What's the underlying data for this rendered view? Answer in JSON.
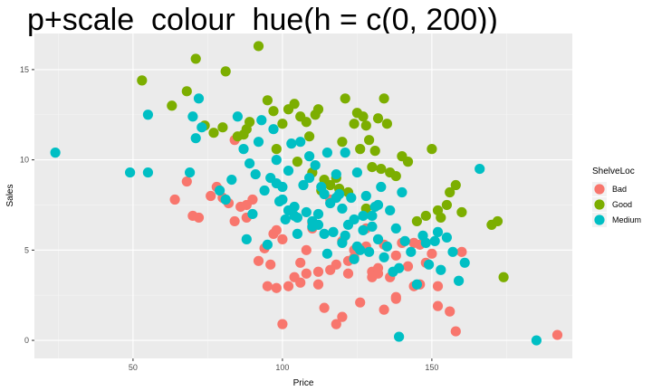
{
  "chart_data": {
    "type": "scatter",
    "title": "p+scale_colour_hue(h = c(0, 200))",
    "xlabel": "Price",
    "ylabel": "Sales",
    "xlim": [
      17,
      197
    ],
    "ylim": [
      -1,
      17
    ],
    "xticks": [
      "50",
      "100",
      "150"
    ],
    "yticks": [
      "0",
      "5",
      "10",
      "15"
    ],
    "grid": true,
    "legend": {
      "title": "ShelveLoc",
      "position": "right"
    },
    "series": [
      {
        "name": "Bad",
        "color": "#F8766D",
        "x": [
          70,
          72,
          78,
          80,
          82,
          84,
          86,
          90,
          95,
          97,
          100,
          102,
          104,
          106,
          108,
          110,
          112,
          114,
          116,
          118,
          120,
          122,
          124,
          126,
          128,
          130,
          132,
          134,
          136,
          138,
          140,
          142,
          144,
          146,
          148,
          150,
          152,
          156,
          158,
          160,
          192,
          64,
          68,
          76,
          88,
          92,
          98,
          120,
          130,
          134,
          138,
          146,
          152,
          110,
          100,
          116,
          122,
          128,
          132,
          106,
          112,
          118,
          84,
          88,
          96,
          98,
          94,
          138,
          144,
          124,
          108
        ],
        "y": [
          6.9,
          6.8,
          8.5,
          7.9,
          7.6,
          11.1,
          7.4,
          7.8,
          3.0,
          5.9,
          5.6,
          3.0,
          3.5,
          4.3,
          5.0,
          6.2,
          3.1,
          1.8,
          3.9,
          4.2,
          5.5,
          3.7,
          5.0,
          2.1,
          6.2,
          3.8,
          4.0,
          1.7,
          3.5,
          2.3,
          5.4,
          4.1,
          3.0,
          5.3,
          4.3,
          4.8,
          3.0,
          1.6,
          0.5,
          4.9,
          0.3,
          7.8,
          8.8,
          8.0,
          6.8,
          4.4,
          2.9,
          1.3,
          3.5,
          5.3,
          2.4,
          3.1,
          1.9,
          6.5,
          0.9,
          7.8,
          4.4,
          5.2,
          3.7,
          3.2,
          3.8,
          0.9,
          6.6,
          7.5,
          4.2,
          6.1,
          5.1,
          4.7,
          5.4,
          4.6,
          3.7
        ]
      },
      {
        "name": "Good",
        "color": "#7CAE00",
        "x": [
          53,
          63,
          68,
          71,
          74,
          77,
          80,
          81,
          85,
          88,
          89,
          92,
          95,
          97,
          98,
          100,
          102,
          104,
          106,
          108,
          109,
          111,
          112,
          114,
          116,
          118,
          120,
          121,
          122,
          124,
          125,
          126,
          127,
          128,
          129,
          130,
          131,
          132,
          133,
          134,
          135,
          136,
          138,
          140,
          142,
          145,
          148,
          150,
          152,
          153,
          155,
          156,
          158,
          160,
          170,
          172,
          174,
          105,
          113,
          119,
          128,
          87,
          110
        ],
        "y": [
          14.4,
          13.0,
          13.8,
          15.6,
          11.9,
          11.5,
          11.8,
          14.9,
          11.3,
          11.7,
          12.1,
          16.3,
          13.3,
          12.7,
          10.6,
          12.0,
          12.8,
          13.1,
          12.4,
          12.1,
          11.3,
          12.5,
          12.8,
          8.9,
          8.6,
          9.0,
          11.0,
          13.4,
          8.2,
          12.0,
          12.6,
          10.6,
          12.4,
          11.9,
          11.1,
          9.6,
          10.5,
          12.3,
          9.5,
          13.4,
          12.0,
          9.3,
          9.1,
          10.2,
          9.9,
          6.6,
          6.9,
          10.6,
          7.2,
          6.8,
          7.5,
          8.2,
          8.6,
          7.1,
          6.4,
          6.6,
          3.5,
          9.9,
          8.3,
          8.4,
          7.3,
          11.4,
          9.3
        ]
      },
      {
        "name": "Medium",
        "color": "#00BFC4",
        "x": [
          24,
          49,
          55,
          55,
          69,
          70,
          71,
          72,
          73,
          79,
          81,
          83,
          85,
          87,
          89,
          90,
          91,
          92,
          93,
          94,
          96,
          97,
          98,
          99,
          100,
          101,
          102,
          103,
          104,
          105,
          106,
          107,
          108,
          109,
          110,
          111,
          112,
          113,
          114,
          115,
          116,
          117,
          118,
          119,
          120,
          121,
          122,
          123,
          124,
          125,
          126,
          127,
          128,
          129,
          130,
          131,
          132,
          133,
          134,
          135,
          136,
          137,
          138,
          139,
          140,
          141,
          143,
          145,
          147,
          149,
          151,
          153,
          155,
          157,
          159,
          161,
          166,
          185,
          139,
          148,
          152,
          125,
          115,
          105,
          95,
          88,
          100,
          110,
          120,
          130,
          98,
          104,
          112,
          118,
          124,
          132,
          109,
          121,
          127,
          102,
          114
        ],
        "y": [
          10.4,
          9.3,
          9.3,
          12.5,
          9.3,
          12.4,
          11.2,
          13.4,
          11.8,
          8.3,
          7.8,
          8.9,
          12.4,
          10.6,
          9.8,
          7.0,
          9.2,
          11.0,
          12.2,
          8.3,
          9.0,
          11.7,
          10.0,
          7.7,
          8.5,
          6.7,
          9.4,
          10.9,
          7.4,
          6.8,
          11.0,
          8.6,
          7.1,
          10.2,
          6.3,
          9.7,
          7.0,
          8.5,
          5.9,
          10.4,
          7.6,
          6.0,
          9.2,
          8.1,
          5.4,
          10.4,
          6.4,
          7.9,
          4.5,
          9.3,
          5.0,
          6.9,
          8.0,
          4.9,
          6.3,
          7.4,
          5.6,
          8.5,
          4.6,
          5.2,
          7.2,
          3.8,
          6.2,
          4.0,
          8.2,
          5.5,
          4.9,
          3.1,
          5.8,
          4.2,
          5.5,
          3.9,
          5.7,
          4.9,
          3.3,
          4.3,
          9.5,
          0.0,
          0.2,
          5.4,
          6.0,
          5.2,
          4.8,
          5.9,
          5.3,
          5.6,
          7.8,
          6.6,
          7.3,
          6.9,
          8.7,
          6.9,
          6.4,
          7.9,
          6.7,
          7.5,
          9.0,
          5.8,
          6.1,
          7.2,
          8.1
        ]
      }
    ]
  }
}
